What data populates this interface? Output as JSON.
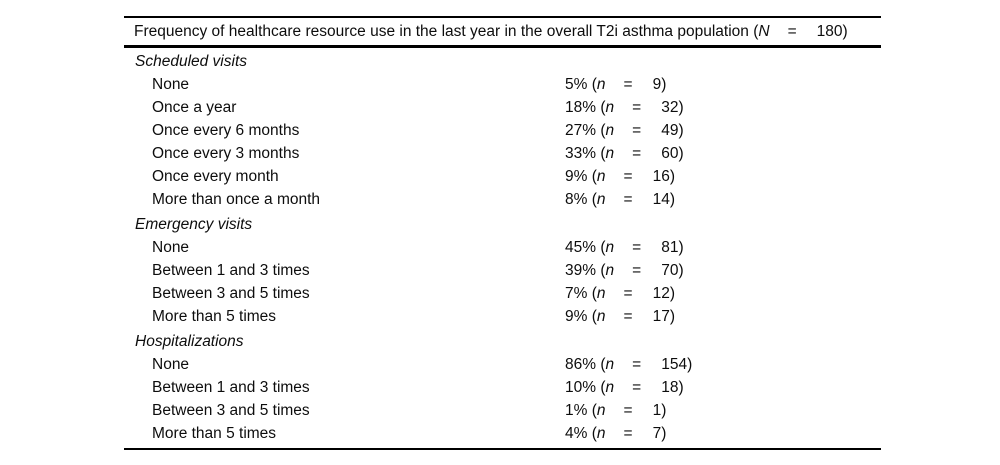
{
  "table": {
    "title": {
      "text": "Frequency of healthcare resource use in the last year in the overall T2i asthma population (",
      "n_symbol": "N",
      "equals": "=",
      "n_value": "180",
      "close": ")"
    },
    "value_symbols": {
      "open": "(",
      "n": "n",
      "equals": "=",
      "close": ")"
    },
    "sections": [
      {
        "label": "Scheduled visits",
        "rows": [
          {
            "label": "None",
            "percent": "5%",
            "count": "9"
          },
          {
            "label": "Once a year",
            "percent": "18%",
            "count": "32"
          },
          {
            "label": "Once every 6 months",
            "percent": "27%",
            "count": "49"
          },
          {
            "label": "Once every 3 months",
            "percent": "33%",
            "count": "60"
          },
          {
            "label": "Once every month",
            "percent": "9%",
            "count": "16"
          },
          {
            "label": "More than once a month",
            "percent": "8%",
            "count": "14"
          }
        ]
      },
      {
        "label": "Emergency visits",
        "rows": [
          {
            "label": "None",
            "percent": "45%",
            "count": "81"
          },
          {
            "label": "Between 1 and 3 times",
            "percent": "39%",
            "count": "70"
          },
          {
            "label": "Between 3 and 5 times",
            "percent": "7%",
            "count": "12"
          },
          {
            "label": "More than 5 times",
            "percent": "9%",
            "count": "17"
          }
        ]
      },
      {
        "label": "Hospitalizations",
        "rows": [
          {
            "label": "None",
            "percent": "86%",
            "count": "154"
          },
          {
            "label": "Between 1 and 3 times",
            "percent": "10%",
            "count": "18"
          },
          {
            "label": "Between 3 and 5 times",
            "percent": "1%",
            "count": "1"
          },
          {
            "label": "More than 5 times",
            "percent": "4%",
            "count": "7"
          }
        ]
      }
    ]
  }
}
